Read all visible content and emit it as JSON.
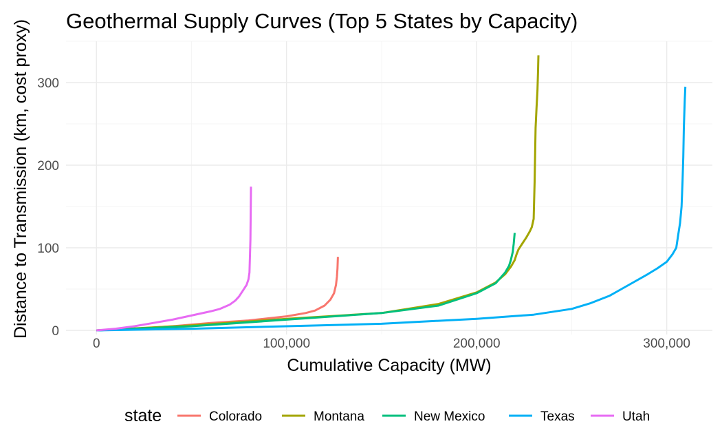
{
  "chart_data": {
    "type": "line",
    "title": "Geothermal Supply Curves (Top 5 States by Capacity)",
    "xlabel": "Cumulative Capacity (MW)",
    "ylabel": "Distance to Transmission (km, cost proxy)",
    "xlim": [
      -16000,
      324000
    ],
    "ylim": [
      -5,
      350
    ],
    "x_ticks": [
      0,
      100000,
      200000,
      300000
    ],
    "x_tick_labels": [
      "0",
      "100,000",
      "200,000",
      "300,000"
    ],
    "y_ticks": [
      0,
      100,
      200,
      300
    ],
    "y_tick_labels": [
      "0",
      "100",
      "200",
      "300"
    ],
    "grid": true,
    "legend": {
      "title": "state",
      "position": "bottom"
    },
    "series": [
      {
        "name": "Colorado",
        "color": "#F8766D",
        "x": [
          0,
          20000,
          40000,
          60000,
          80000,
          100000,
          110000,
          115000,
          120000,
          123000,
          125000,
          126000,
          126500,
          126800,
          127000
        ],
        "y": [
          0,
          2,
          5,
          9,
          12,
          17,
          21,
          24,
          30,
          37,
          45,
          55,
          65,
          75,
          89
        ]
      },
      {
        "name": "Montana",
        "color": "#A3A500",
        "x": [
          0,
          50000,
          100000,
          150000,
          180000,
          200000,
          210000,
          215000,
          218000,
          220000,
          221000,
          222000,
          224000,
          226000,
          228000,
          229000,
          230000,
          230500,
          231000,
          231500,
          232000,
          232300,
          232500
        ],
        "y": [
          0,
          6,
          14,
          21,
          32,
          46,
          58,
          68,
          77,
          85,
          92,
          98,
          105,
          112,
          120,
          125,
          135,
          180,
          245,
          270,
          290,
          315,
          333
        ]
      },
      {
        "name": "New Mexico",
        "color": "#00BF7D",
        "x": [
          0,
          50000,
          100000,
          150000,
          180000,
          200000,
          210000,
          215000,
          217000,
          218000,
          219000,
          219500,
          220000
        ],
        "y": [
          0,
          5,
          13,
          21,
          30,
          45,
          57,
          70,
          78,
          85,
          95,
          105,
          118
        ]
      },
      {
        "name": "Texas",
        "color": "#00B0F6",
        "x": [
          0,
          50000,
          100000,
          150000,
          200000,
          230000,
          250000,
          260000,
          270000,
          280000,
          290000,
          295000,
          300000,
          303000,
          305000,
          306000,
          307000,
          307800,
          308300,
          308700,
          309000,
          309200,
          309500,
          309800
        ],
        "y": [
          0,
          2,
          5,
          8,
          14,
          19,
          26,
          33,
          42,
          55,
          68,
          75,
          83,
          92,
          100,
          115,
          130,
          150,
          180,
          210,
          245,
          260,
          280,
          295
        ]
      },
      {
        "name": "Utah",
        "color": "#E76BF3",
        "x": [
          0,
          10000,
          20000,
          30000,
          40000,
          50000,
          60000,
          65000,
          70000,
          73000,
          75000,
          77000,
          79000,
          80000,
          80500,
          81000,
          81300
        ],
        "y": [
          0,
          2,
          5,
          9,
          13,
          18,
          23,
          26,
          31,
          36,
          41,
          48,
          55,
          62,
          70,
          110,
          174
        ]
      }
    ]
  }
}
